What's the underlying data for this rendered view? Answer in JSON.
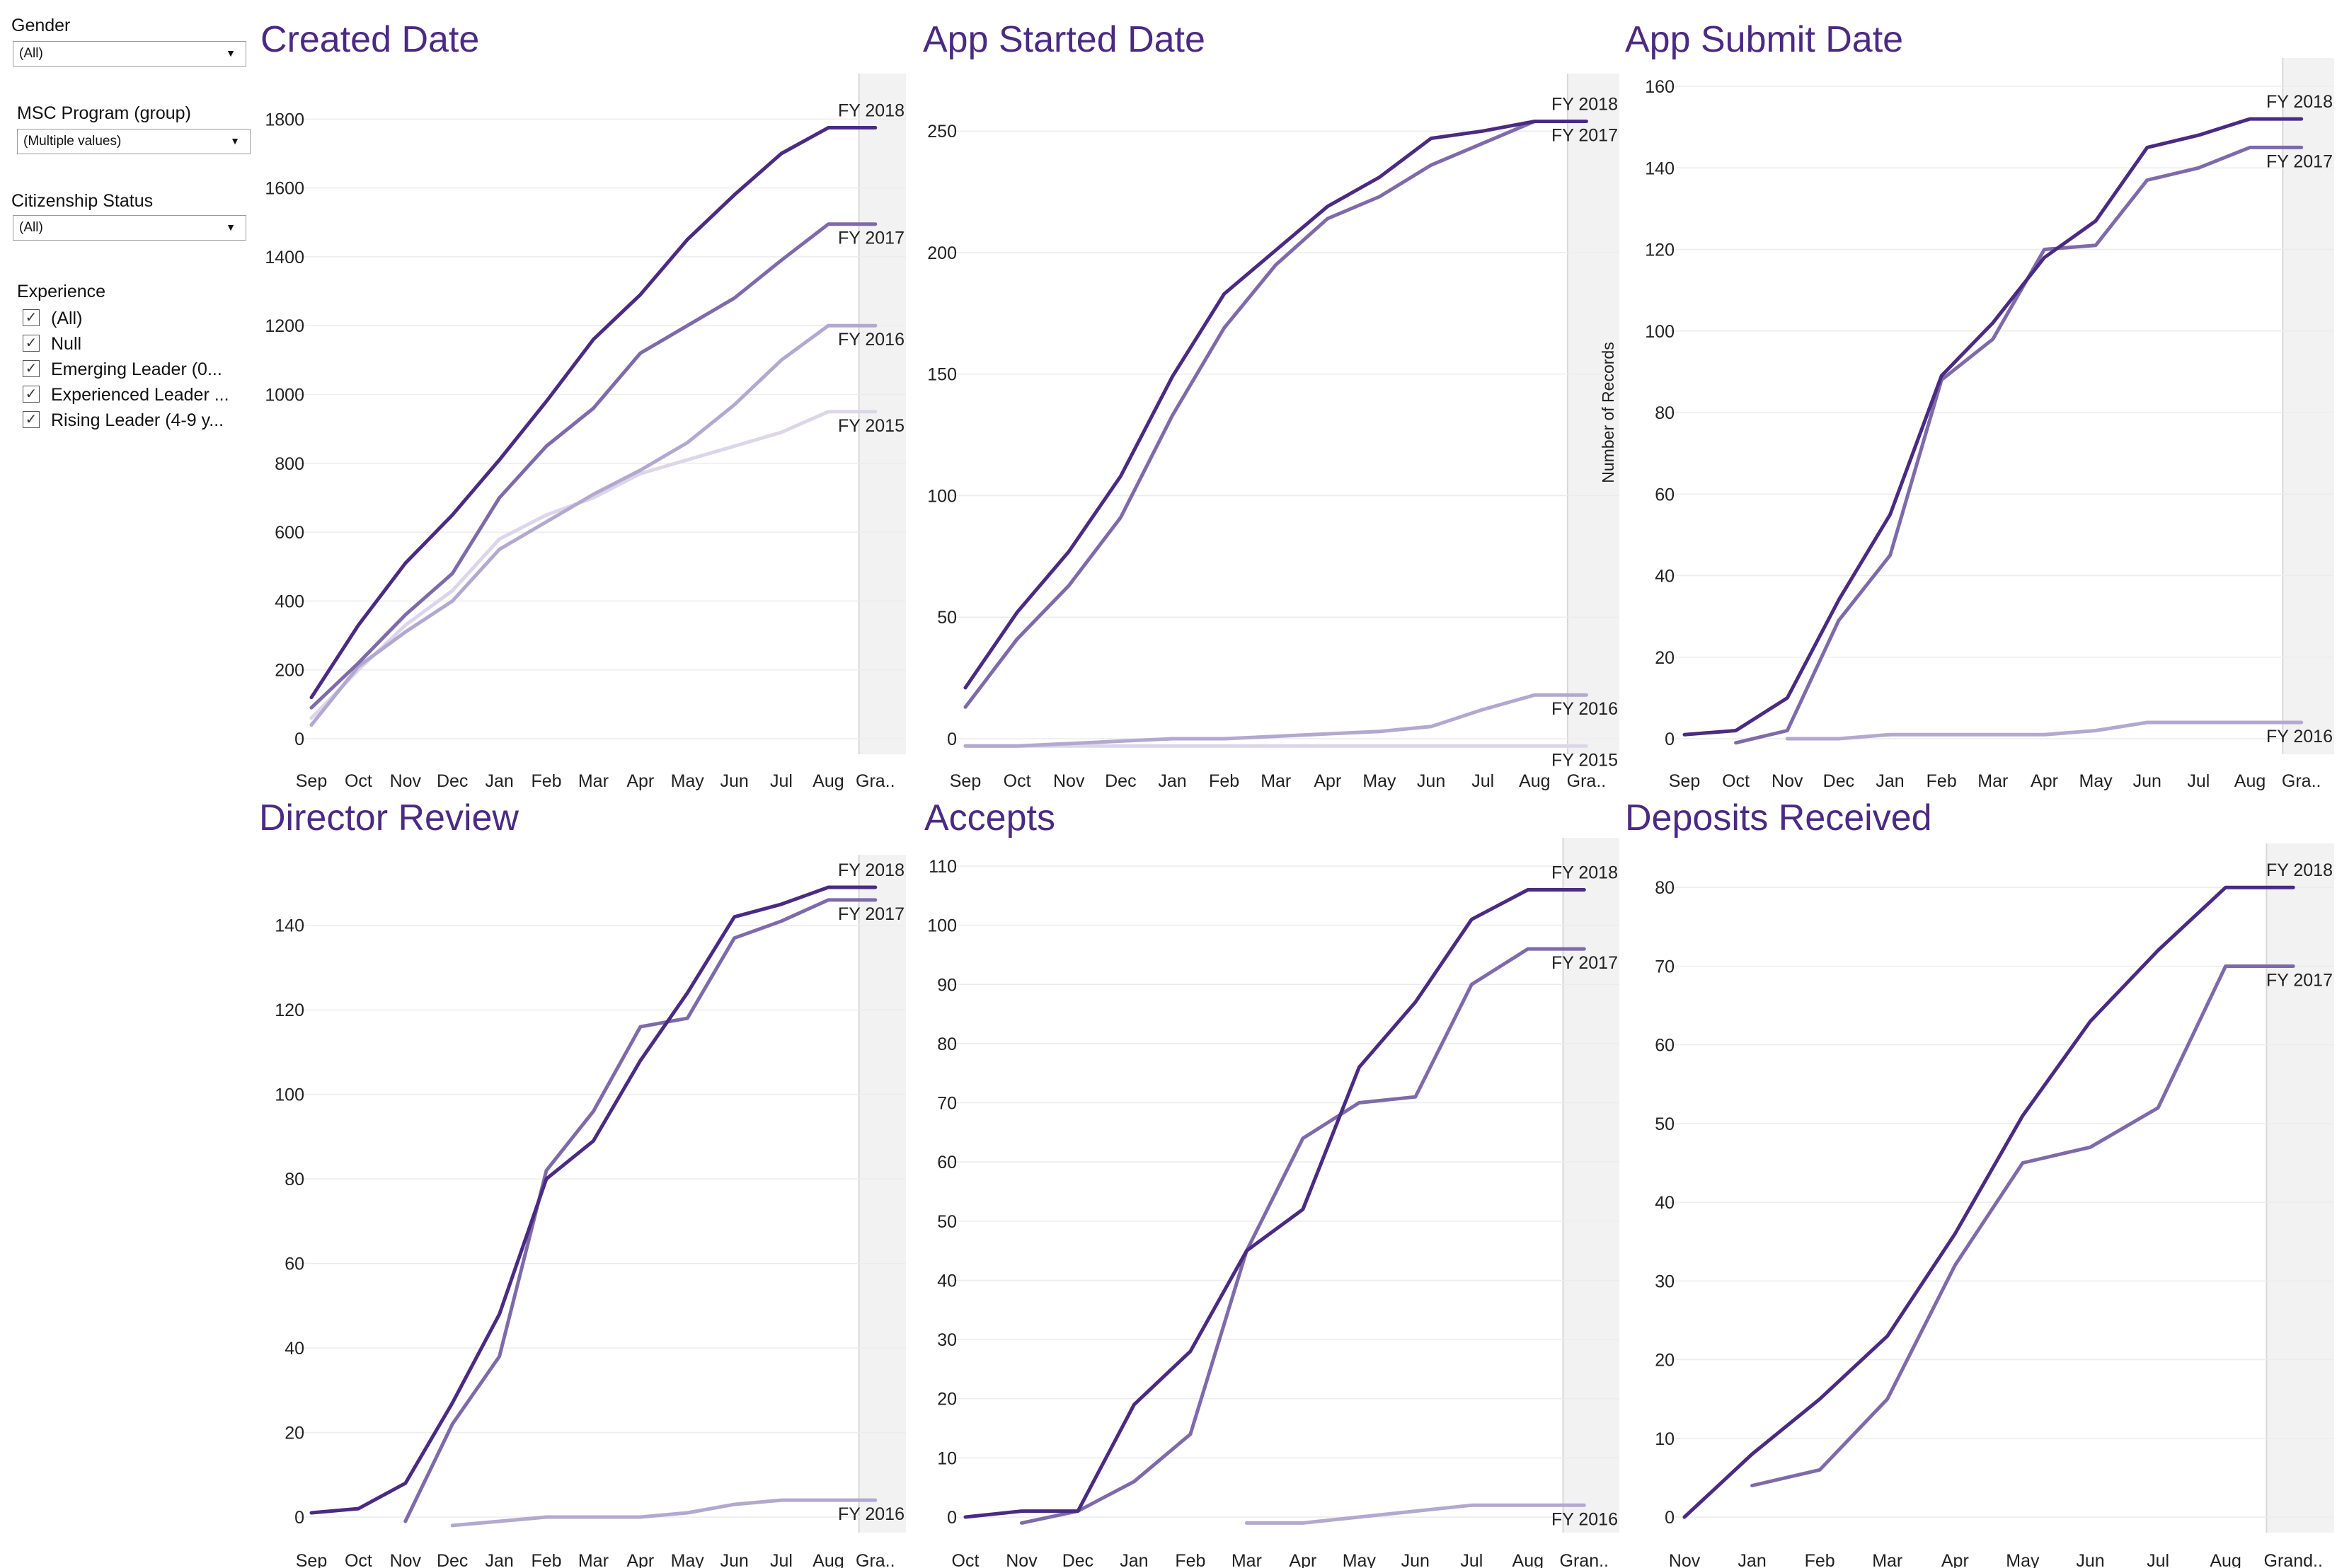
{
  "filters": {
    "gender": {
      "label": "Gender",
      "value": "(All)"
    },
    "program": {
      "label": "MSC Program (group)",
      "value": "(Multiple values)"
    },
    "citizenship": {
      "label": "Citizenship Status",
      "value": "(All)"
    },
    "experience": {
      "label": "Experience",
      "items": [
        {
          "label": "(All)",
          "checked": true
        },
        {
          "label": "Null",
          "checked": true
        },
        {
          "label": "Emerging Leader (0...",
          "checked": true
        },
        {
          "label": "Experienced Leader ...",
          "checked": true
        },
        {
          "label": "Rising Leader (4-9 y...",
          "checked": true
        }
      ]
    }
  },
  "colors": {
    "title": "#4a2a82",
    "FY 2018": "#4a2a82",
    "FY 2017": "#7e6aaa",
    "FY 2016": "#b3a8cf",
    "FY 2015": "#dcd6ea"
  },
  "chart_data": [
    {
      "type": "line",
      "title": "Created Date",
      "x": [
        "Sep",
        "Oct",
        "Nov",
        "Dec",
        "Jan",
        "Feb",
        "Mar",
        "Apr",
        "May",
        "Jun",
        "Jul",
        "Aug",
        "Gra.."
      ],
      "shaded_last": true,
      "ylim": [
        0,
        1850
      ],
      "yticks": [
        0,
        200,
        400,
        600,
        800,
        1000,
        1200,
        1400,
        1600,
        1800
      ],
      "ylabel": "",
      "grid": true,
      "series": [
        {
          "name": "FY 2018",
          "values": [
            120,
            330,
            510,
            650,
            810,
            980,
            1160,
            1290,
            1450,
            1580,
            1700,
            1775,
            1775
          ]
        },
        {
          "name": "FY 2017",
          "values": [
            90,
            220,
            360,
            480,
            700,
            850,
            960,
            1120,
            1200,
            1280,
            1390,
            1495,
            1495
          ]
        },
        {
          "name": "FY 2016",
          "values": [
            40,
            210,
            310,
            400,
            550,
            630,
            710,
            780,
            860,
            970,
            1100,
            1200,
            1200
          ]
        },
        {
          "name": "FY 2015",
          "values": [
            60,
            200,
            330,
            430,
            580,
            650,
            700,
            770,
            810,
            850,
            890,
            950,
            950
          ]
        }
      ]
    },
    {
      "type": "line",
      "title": "App Started Date",
      "x": [
        "Sep",
        "Oct",
        "Nov",
        "Dec",
        "Jan",
        "Feb",
        "Mar",
        "Apr",
        "May",
        "Jun",
        "Jul",
        "Aug",
        "Gra.."
      ],
      "shaded_last": true,
      "ylim": [
        0,
        262
      ],
      "yticks": [
        0,
        50,
        100,
        150,
        200,
        250
      ],
      "ylabel": "",
      "grid": true,
      "series": [
        {
          "name": "FY 2018",
          "values": [
            21,
            52,
            77,
            108,
            149,
            183,
            201,
            219,
            231,
            247,
            250,
            254,
            254
          ]
        },
        {
          "name": "FY 2017",
          "values": [
            13,
            41,
            63,
            91,
            133,
            169,
            195,
            214,
            223,
            236,
            245,
            254,
            254
          ]
        },
        {
          "name": "FY 2016",
          "values": [
            null,
            null,
            null,
            null,
            null,
            null,
            null,
            null,
            null,
            null,
            null,
            null,
            null
          ]
        },
        {
          "name": "FY 2016",
          "values": [
            -3,
            -3,
            -2,
            -1,
            0,
            0,
            1,
            2,
            3,
            5,
            12,
            18,
            18
          ]
        },
        {
          "name": "FY 2015",
          "values": [
            -3,
            -3,
            -3,
            -3,
            -3,
            -3,
            -3,
            -3,
            -3,
            -3,
            -3,
            -3,
            -3
          ]
        }
      ]
    },
    {
      "type": "line",
      "title": "App Submit Date",
      "x": [
        "Sep",
        "Oct",
        "Nov",
        "Dec",
        "Jan",
        "Feb",
        "Mar",
        "Apr",
        "May",
        "Jun",
        "Jul",
        "Aug",
        "Gra.."
      ],
      "shaded_last": true,
      "ylim": [
        0,
        160
      ],
      "yticks": [
        0,
        20,
        40,
        60,
        80,
        100,
        120,
        140,
        160
      ],
      "ylabel": "Number of Records",
      "grid": true,
      "series": [
        {
          "name": "FY 2018",
          "values": [
            1,
            2,
            10,
            34,
            55,
            89,
            102,
            118,
            127,
            145,
            148,
            152,
            152
          ]
        },
        {
          "name": "FY 2017",
          "values": [
            null,
            -1,
            2,
            29,
            45,
            88,
            98,
            120,
            121,
            137,
            140,
            145,
            145
          ]
        },
        {
          "name": "FY 2016",
          "values": [
            null,
            null,
            0,
            0,
            1,
            1,
            1,
            1,
            2,
            4,
            4,
            4,
            4
          ]
        }
      ]
    },
    {
      "type": "line",
      "title": "Director Review",
      "x": [
        "Sep",
        "Oct",
        "Nov",
        "Dec",
        "Jan",
        "Feb",
        "Mar",
        "Apr",
        "May",
        "Jun",
        "Jul",
        "Aug",
        "Gra.."
      ],
      "shaded_last": true,
      "ylim": [
        0,
        150
      ],
      "yticks": [
        0,
        20,
        40,
        60,
        80,
        100,
        120,
        140
      ],
      "ylabel": "",
      "grid": true,
      "series": [
        {
          "name": "FY 2018",
          "values": [
            1,
            2,
            8,
            27,
            48,
            80,
            89,
            108,
            124,
            142,
            145,
            149,
            149
          ]
        },
        {
          "name": "FY 2017",
          "values": [
            null,
            null,
            -1,
            22,
            38,
            82,
            96,
            116,
            118,
            137,
            141,
            146,
            146
          ]
        },
        {
          "name": "FY 2016",
          "values": [
            null,
            null,
            null,
            -2,
            -1,
            0,
            0,
            0,
            1,
            3,
            4,
            4,
            4
          ]
        }
      ]
    },
    {
      "type": "line",
      "title": "Accepts",
      "x": [
        "Oct",
        "Nov",
        "Dec",
        "Jan",
        "Feb",
        "Mar",
        "Apr",
        "May",
        "Jun",
        "Jul",
        "Aug",
        "Gran.."
      ],
      "shaded_last": true,
      "ylim": [
        0,
        110
      ],
      "yticks": [
        0,
        10,
        20,
        30,
        40,
        50,
        60,
        70,
        80,
        90,
        100,
        110
      ],
      "ylabel": "",
      "grid": true,
      "series": [
        {
          "name": "FY 2018",
          "values": [
            0,
            1,
            1,
            19,
            28,
            45,
            52,
            76,
            87,
            101,
            106,
            106
          ]
        },
        {
          "name": "FY 2017",
          "values": [
            null,
            -1,
            1,
            6,
            14,
            45,
            64,
            70,
            71,
            90,
            96,
            96
          ]
        },
        {
          "name": "FY 2016",
          "values": [
            null,
            null,
            null,
            null,
            null,
            -1,
            -1,
            0,
            1,
            2,
            2,
            2
          ]
        }
      ]
    },
    {
      "type": "line",
      "title": "Deposits Received",
      "x": [
        "Nov",
        "Jan",
        "Feb",
        "Mar",
        "Apr",
        "May",
        "Jun",
        "Jul",
        "Aug",
        "Grand.."
      ],
      "shaded_last": true,
      "ylim": [
        0,
        82
      ],
      "yticks": [
        0,
        10,
        20,
        30,
        40,
        50,
        60,
        70,
        80
      ],
      "ylabel": "",
      "grid": true,
      "series": [
        {
          "name": "FY 2018",
          "values": [
            0,
            8,
            15,
            23,
            36,
            51,
            63,
            72,
            80,
            80
          ]
        },
        {
          "name": "FY 2017",
          "values": [
            null,
            4,
            6,
            15,
            32,
            45,
            47,
            52,
            70,
            70
          ]
        }
      ]
    }
  ]
}
